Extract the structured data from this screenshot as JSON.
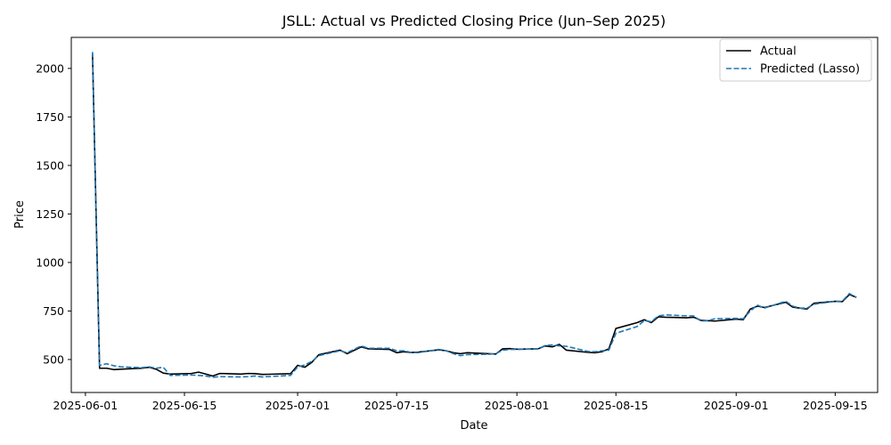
{
  "chart_data": {
    "type": "line",
    "title": "JSLL: Actual vs Predicted Closing Price (Jun–Sep 2025)",
    "xlabel": "Date",
    "ylabel": "Price",
    "xlim": [
      "2025-05-30",
      "2025-09-21"
    ],
    "ylim": [
      330,
      2160
    ],
    "x_ticks": [
      "2025-06-01",
      "2025-06-15",
      "2025-07-01",
      "2025-07-15",
      "2025-08-01",
      "2025-08-15",
      "2025-09-01",
      "2025-09-15"
    ],
    "y_ticks": [
      500,
      750,
      1000,
      1250,
      1500,
      1750,
      2000
    ],
    "legend_position": "upper right",
    "grid": false,
    "series": [
      {
        "name": "Actual",
        "color": "#000000",
        "style": "solid",
        "points": [
          [
            "2025-06-02",
            2075
          ],
          [
            "2025-06-03",
            455
          ],
          [
            "2025-06-04",
            455
          ],
          [
            "2025-06-05",
            448
          ],
          [
            "2025-06-06",
            450
          ],
          [
            "2025-06-09",
            455
          ],
          [
            "2025-06-10",
            460
          ],
          [
            "2025-06-11",
            450
          ],
          [
            "2025-06-12",
            430
          ],
          [
            "2025-06-13",
            425
          ],
          [
            "2025-06-16",
            428
          ],
          [
            "2025-06-17",
            435
          ],
          [
            "2025-06-18",
            425
          ],
          [
            "2025-06-19",
            415
          ],
          [
            "2025-06-20",
            428
          ],
          [
            "2025-06-23",
            425
          ],
          [
            "2025-06-24",
            428
          ],
          [
            "2025-06-25",
            427
          ],
          [
            "2025-06-26",
            423
          ],
          [
            "2025-06-27",
            424
          ],
          [
            "2025-06-30",
            427
          ],
          [
            "2025-07-01",
            470
          ],
          [
            "2025-07-02",
            460
          ],
          [
            "2025-07-03",
            485
          ],
          [
            "2025-07-04",
            525
          ],
          [
            "2025-07-07",
            548
          ],
          [
            "2025-07-08",
            530
          ],
          [
            "2025-07-10",
            565
          ],
          [
            "2025-07-11",
            555
          ],
          [
            "2025-07-14",
            552
          ],
          [
            "2025-07-15",
            535
          ],
          [
            "2025-07-16",
            540
          ],
          [
            "2025-07-17",
            536
          ],
          [
            "2025-07-18",
            538
          ],
          [
            "2025-07-21",
            550
          ],
          [
            "2025-07-22",
            545
          ],
          [
            "2025-07-23",
            535
          ],
          [
            "2025-07-24",
            530
          ],
          [
            "2025-07-25",
            535
          ],
          [
            "2025-07-28",
            530
          ],
          [
            "2025-07-29",
            528
          ],
          [
            "2025-07-30",
            555
          ],
          [
            "2025-07-31",
            556
          ],
          [
            "2025-08-01",
            553
          ],
          [
            "2025-08-04",
            555
          ],
          [
            "2025-08-05",
            570
          ],
          [
            "2025-08-06",
            565
          ],
          [
            "2025-08-07",
            578
          ],
          [
            "2025-08-08",
            548
          ],
          [
            "2025-08-11",
            537
          ],
          [
            "2025-08-12",
            535
          ],
          [
            "2025-08-13",
            540
          ],
          [
            "2025-08-14",
            555
          ],
          [
            "2025-08-15",
            660
          ],
          [
            "2025-08-18",
            690
          ],
          [
            "2025-08-19",
            705
          ],
          [
            "2025-08-20",
            690
          ],
          [
            "2025-08-21",
            720
          ],
          [
            "2025-08-22",
            718
          ],
          [
            "2025-08-25",
            715
          ],
          [
            "2025-08-26",
            718
          ],
          [
            "2025-08-27",
            702
          ],
          [
            "2025-08-28",
            700
          ],
          [
            "2025-08-29",
            698
          ],
          [
            "2025-09-01",
            708
          ],
          [
            "2025-09-02",
            705
          ],
          [
            "2025-09-03",
            760
          ],
          [
            "2025-09-04",
            775
          ],
          [
            "2025-09-05",
            768
          ],
          [
            "2025-09-08",
            795
          ],
          [
            "2025-09-09",
            770
          ],
          [
            "2025-09-10",
            765
          ],
          [
            "2025-09-11",
            760
          ],
          [
            "2025-09-12",
            790
          ],
          [
            "2025-09-15",
            800
          ],
          [
            "2025-09-16",
            798
          ],
          [
            "2025-09-17",
            835
          ],
          [
            "2025-09-18",
            820
          ]
        ]
      },
      {
        "name": "Predicted (Lasso)",
        "color": "#1f77b4",
        "style": "dashed",
        "points": [
          [
            "2025-06-02",
            2085
          ],
          [
            "2025-06-03",
            470
          ],
          [
            "2025-06-04",
            478
          ],
          [
            "2025-06-05",
            468
          ],
          [
            "2025-06-06",
            462
          ],
          [
            "2025-06-09",
            458
          ],
          [
            "2025-06-10",
            462
          ],
          [
            "2025-06-11",
            455
          ],
          [
            "2025-06-12",
            460
          ],
          [
            "2025-06-13",
            418
          ],
          [
            "2025-06-16",
            420
          ],
          [
            "2025-06-17",
            418
          ],
          [
            "2025-06-18",
            415
          ],
          [
            "2025-06-19",
            408
          ],
          [
            "2025-06-20",
            412
          ],
          [
            "2025-06-23",
            410
          ],
          [
            "2025-06-24",
            412
          ],
          [
            "2025-06-25",
            415
          ],
          [
            "2025-06-26",
            410
          ],
          [
            "2025-06-27",
            412
          ],
          [
            "2025-06-30",
            418
          ],
          [
            "2025-07-01",
            462
          ],
          [
            "2025-07-02",
            472
          ],
          [
            "2025-07-03",
            490
          ],
          [
            "2025-07-04",
            520
          ],
          [
            "2025-07-07",
            545
          ],
          [
            "2025-07-08",
            535
          ],
          [
            "2025-07-10",
            570
          ],
          [
            "2025-07-11",
            558
          ],
          [
            "2025-07-14",
            558
          ],
          [
            "2025-07-15",
            545
          ],
          [
            "2025-07-16",
            545
          ],
          [
            "2025-07-17",
            537
          ],
          [
            "2025-07-18",
            535
          ],
          [
            "2025-07-21",
            552
          ],
          [
            "2025-07-22",
            545
          ],
          [
            "2025-07-23",
            530
          ],
          [
            "2025-07-24",
            520
          ],
          [
            "2025-07-25",
            525
          ],
          [
            "2025-07-28",
            527
          ],
          [
            "2025-07-29",
            530
          ],
          [
            "2025-07-30",
            548
          ],
          [
            "2025-07-31",
            552
          ],
          [
            "2025-08-01",
            552
          ],
          [
            "2025-08-04",
            555
          ],
          [
            "2025-08-05",
            572
          ],
          [
            "2025-08-06",
            575
          ],
          [
            "2025-08-07",
            570
          ],
          [
            "2025-08-08",
            568
          ],
          [
            "2025-08-11",
            542
          ],
          [
            "2025-08-12",
            540
          ],
          [
            "2025-08-13",
            545
          ],
          [
            "2025-08-14",
            548
          ],
          [
            "2025-08-15",
            635
          ],
          [
            "2025-08-18",
            670
          ],
          [
            "2025-08-19",
            700
          ],
          [
            "2025-08-20",
            695
          ],
          [
            "2025-08-21",
            725
          ],
          [
            "2025-08-22",
            730
          ],
          [
            "2025-08-25",
            725
          ],
          [
            "2025-08-26",
            725
          ],
          [
            "2025-08-27",
            698
          ],
          [
            "2025-08-28",
            700
          ],
          [
            "2025-08-29",
            710
          ],
          [
            "2025-09-01",
            712
          ],
          [
            "2025-09-02",
            710
          ],
          [
            "2025-09-03",
            750
          ],
          [
            "2025-09-04",
            780
          ],
          [
            "2025-09-05",
            765
          ],
          [
            "2025-09-08",
            800
          ],
          [
            "2025-09-09",
            775
          ],
          [
            "2025-09-10",
            765
          ],
          [
            "2025-09-11",
            765
          ],
          [
            "2025-09-12",
            785
          ],
          [
            "2025-09-15",
            800
          ],
          [
            "2025-09-16",
            800
          ],
          [
            "2025-09-17",
            840
          ],
          [
            "2025-09-18",
            820
          ]
        ]
      }
    ]
  }
}
